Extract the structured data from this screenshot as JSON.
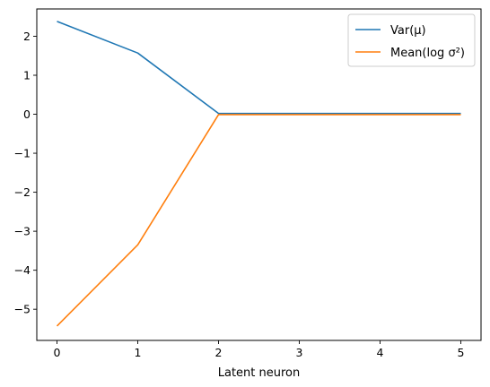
{
  "chart_data": {
    "type": "line",
    "xlabel": "Latent neuron",
    "ylabel": "",
    "x": [
      0,
      1,
      2,
      3,
      4,
      5
    ],
    "xlim": [
      -0.25,
      5.25
    ],
    "ylim": [
      -5.8,
      2.7
    ],
    "xticks": [
      0,
      1,
      2,
      3,
      4,
      5
    ],
    "yticks": [
      2,
      1,
      0,
      -1,
      -2,
      -3,
      -4,
      -5
    ],
    "ytick_labels": [
      "2",
      "1",
      "0",
      "−1",
      "−2",
      "−3",
      "−4",
      "−5"
    ],
    "grid": false,
    "legend_position": "top-right",
    "series": [
      {
        "name": "Var(μ)",
        "color": "#1f77b4",
        "values": [
          2.38,
          1.57,
          0.02,
          0.02,
          0.02,
          0.02
        ]
      },
      {
        "name": "Mean(log σ²)",
        "color": "#ff7f0e",
        "values": [
          -5.43,
          -3.35,
          -0.01,
          -0.01,
          -0.01,
          -0.01
        ]
      }
    ]
  }
}
